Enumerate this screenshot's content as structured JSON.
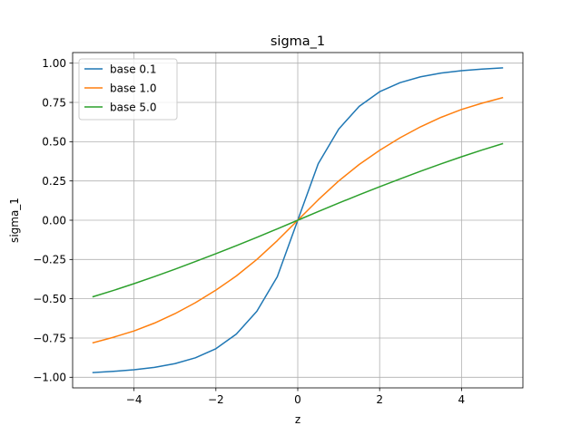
{
  "chart_data": {
    "type": "line",
    "title": "sigma_1",
    "xlabel": "z",
    "ylabel": "sigma_1",
    "xlim": [
      -5.5,
      5.5
    ],
    "ylim": [
      -1.0675,
      1.0675
    ],
    "xticks": [
      -4,
      -2,
      0,
      2,
      4
    ],
    "xtick_labels": [
      "−4",
      "−2",
      "0",
      "2",
      "4"
    ],
    "yticks": [
      -1.0,
      -0.75,
      -0.5,
      -0.25,
      0.0,
      0.25,
      0.5,
      0.75,
      1.0
    ],
    "ytick_labels": [
      "−1.00",
      "−0.75",
      "−0.50",
      "−0.25",
      "0.00",
      "0.25",
      "0.50",
      "0.75",
      "1.00"
    ],
    "grid": true,
    "legend_position": "top-left",
    "x": [
      -5,
      -4.5,
      -4,
      -3.5,
      -3,
      -2.5,
      -2,
      -1.5,
      -1,
      -0.5,
      0,
      0.5,
      1,
      1.5,
      2,
      2.5,
      3,
      3.5,
      4,
      4.5,
      5
    ],
    "series": [
      {
        "name": "base 0.1",
        "color": "#1f77b4",
        "values": [
          -0.97,
          -0.962,
          -0.952,
          -0.937,
          -0.913,
          -0.876,
          -0.818,
          -0.725,
          -0.58,
          -0.36,
          0.0,
          0.36,
          0.58,
          0.725,
          0.818,
          0.876,
          0.913,
          0.937,
          0.952,
          0.962,
          0.97
        ]
      },
      {
        "name": "base 1.0",
        "color": "#ff7f0e",
        "values": [
          -0.78,
          -0.745,
          -0.705,
          -0.655,
          -0.595,
          -0.525,
          -0.445,
          -0.355,
          -0.25,
          -0.13,
          0.0,
          0.13,
          0.25,
          0.355,
          0.445,
          0.525,
          0.595,
          0.655,
          0.705,
          0.745,
          0.78
        ]
      },
      {
        "name": "base 5.0",
        "color": "#2ca02c",
        "values": [
          -0.487,
          -0.447,
          -0.404,
          -0.359,
          -0.312,
          -0.263,
          -0.213,
          -0.162,
          -0.109,
          -0.055,
          0.0,
          0.055,
          0.109,
          0.162,
          0.213,
          0.263,
          0.312,
          0.359,
          0.404,
          0.447,
          0.487
        ]
      }
    ]
  }
}
